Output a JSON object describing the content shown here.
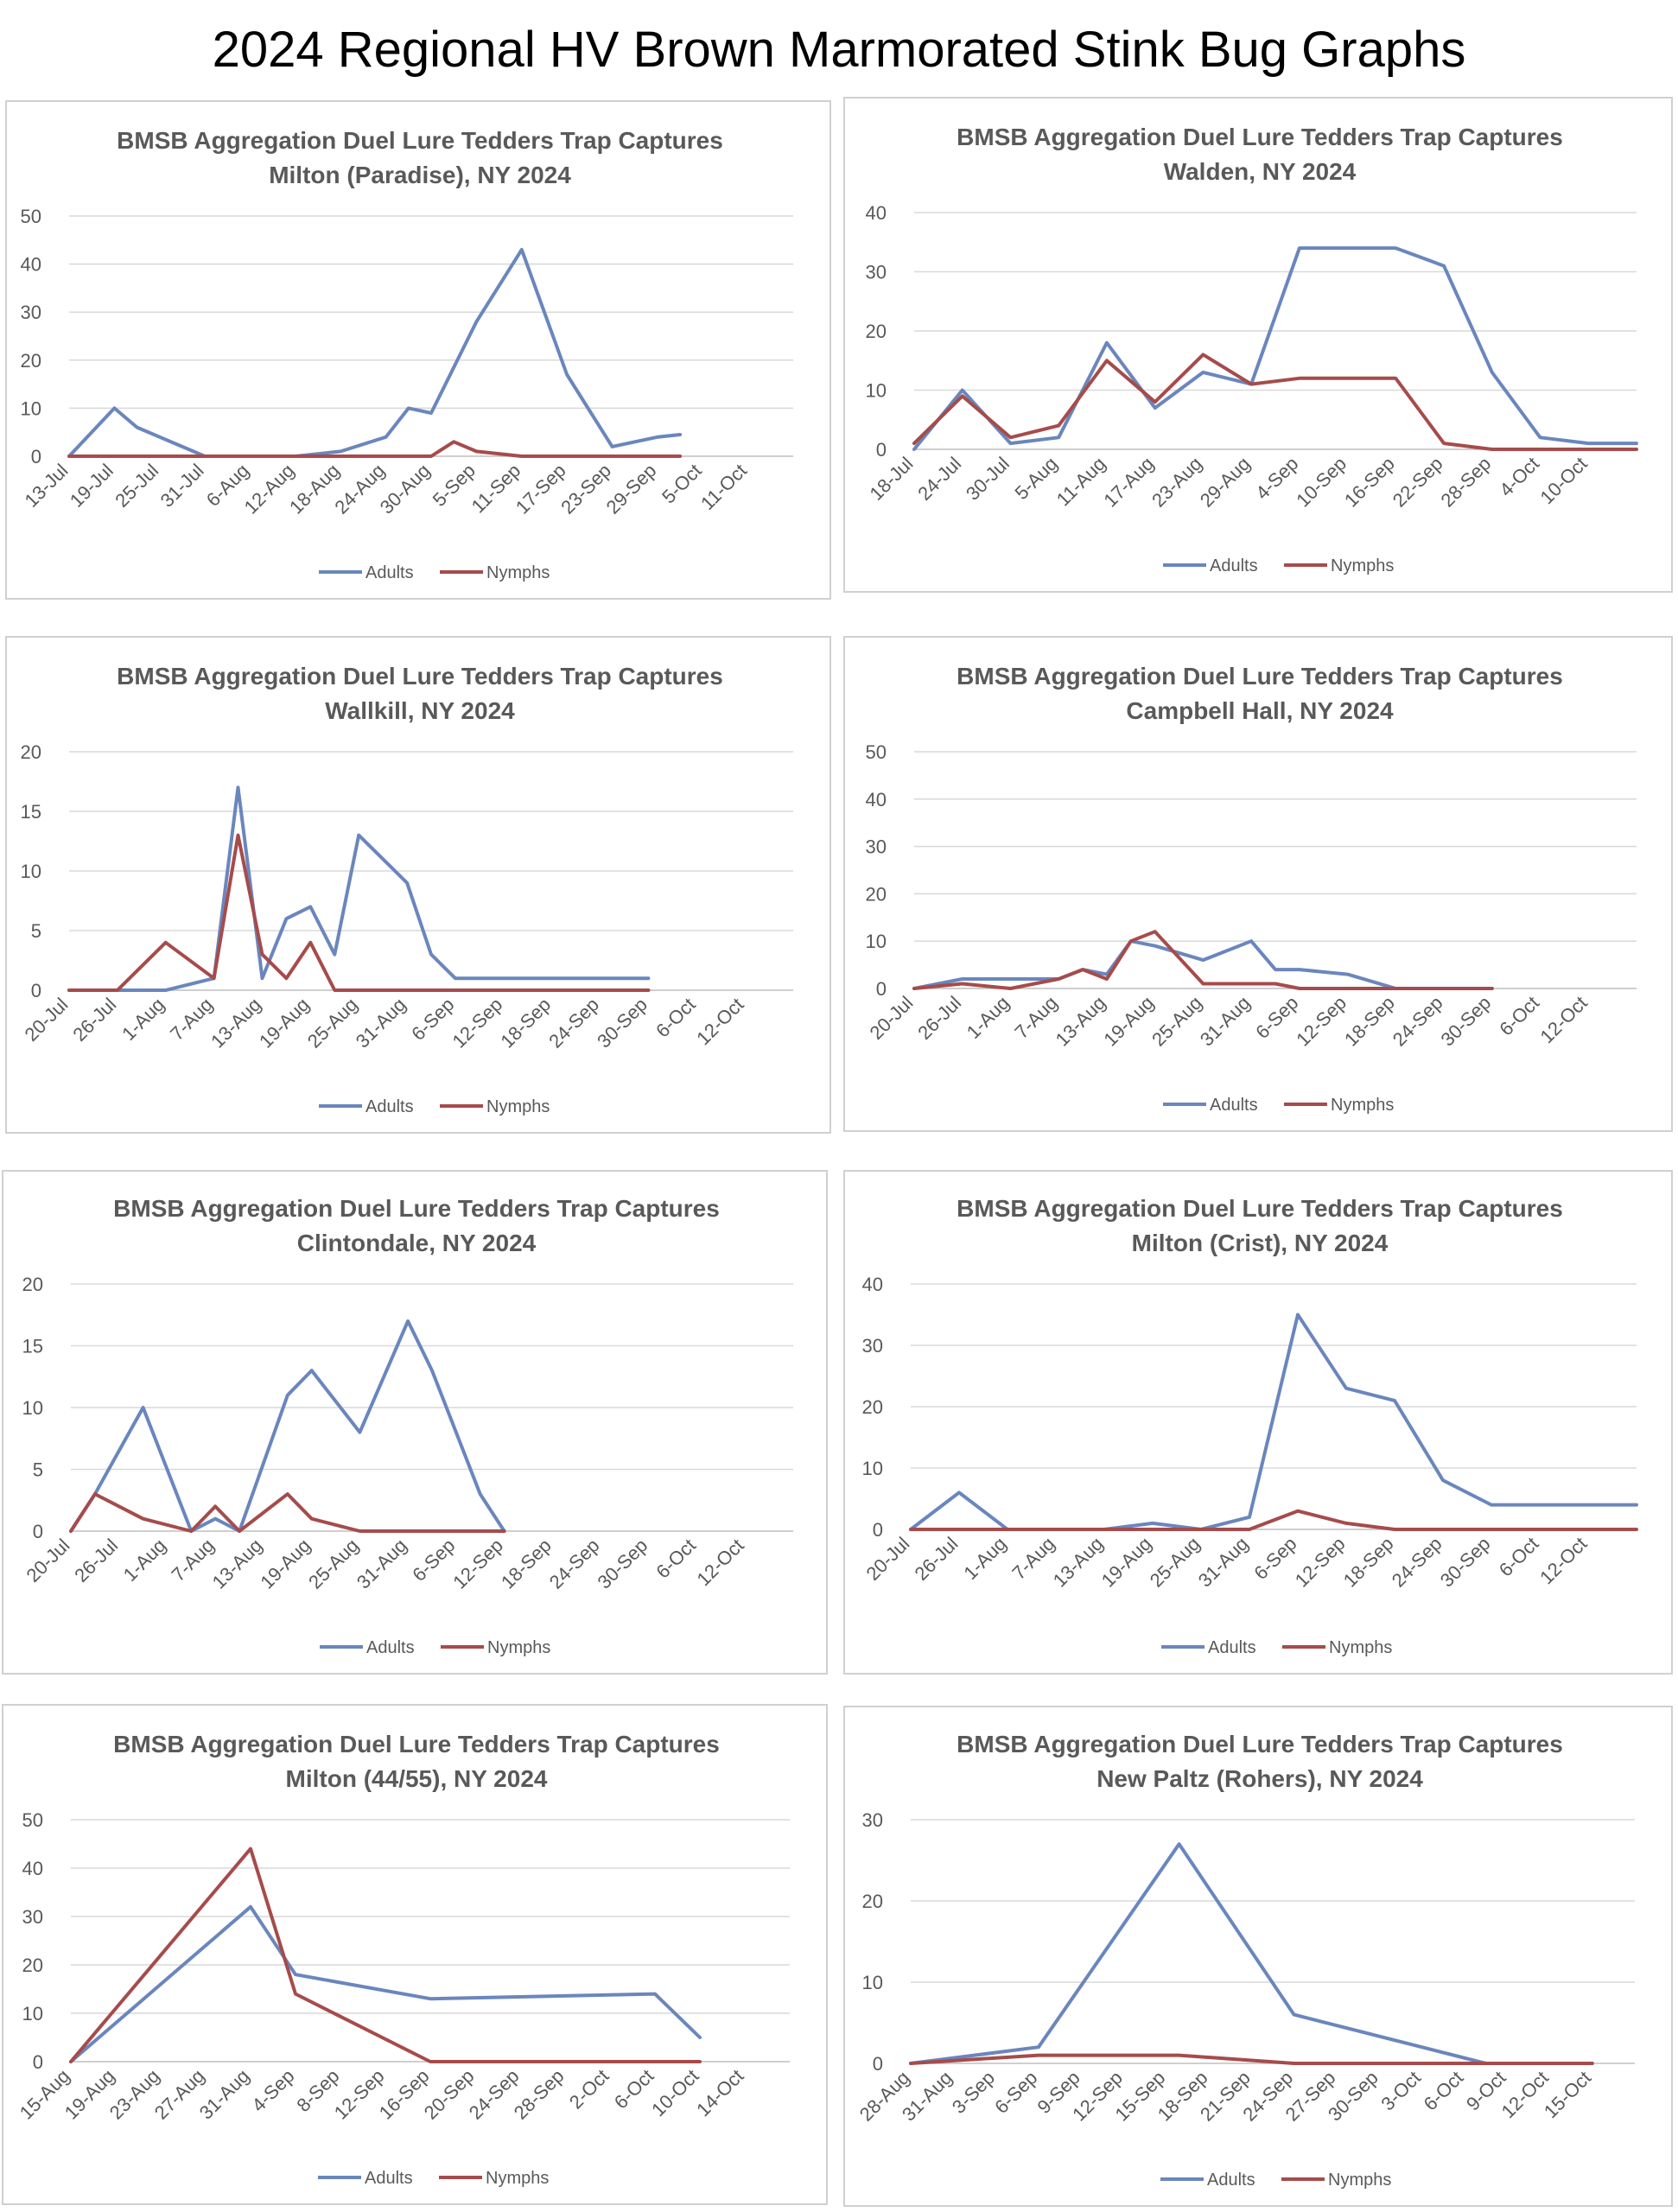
{
  "page": {
    "title": "2024 Regional HV Brown Marmorated Stink Bug Graphs"
  },
  "colors": {
    "adults": "#6a86bd",
    "nymphs": "#a64b4b"
  },
  "chart_data": [
    {
      "type": "line",
      "title_line1": "BMSB Aggregation Duel Lure Tedders Trap Captures",
      "title_line2": "Milton (Paradise), NY 2024",
      "ylim": [
        0,
        50
      ],
      "yticks": [
        0,
        10,
        20,
        30,
        40,
        50
      ],
      "categories": [
        "13-Jul",
        "19-Jul",
        "25-Jul",
        "31-Jul",
        "6-Aug",
        "12-Aug",
        "18-Aug",
        "24-Aug",
        "30-Aug",
        "5-Sep",
        "11-Sep",
        "17-Sep",
        "23-Sep",
        "29-Sep",
        "5-Oct",
        "11-Oct"
      ],
      "series": [
        {
          "name": "Adults",
          "x": [
            0,
            1,
            1.5,
            2.5,
            3,
            4,
            5,
            6,
            7,
            7.5,
            8,
            9,
            10,
            11,
            12,
            13,
            13.5
          ],
          "values": [
            0,
            10,
            6,
            2,
            0,
            0,
            0,
            1,
            4,
            10,
            9,
            28,
            43,
            17,
            2,
            4,
            4.5
          ]
        },
        {
          "name": "Nymphs",
          "x": [
            0,
            8,
            8.5,
            9,
            10,
            11,
            12,
            13,
            13.5
          ],
          "values": [
            0,
            0,
            3,
            1,
            0,
            0,
            0,
            0,
            0
          ]
        }
      ],
      "legend": "bottom"
    },
    {
      "type": "line",
      "title_line1": "BMSB Aggregation Duel Lure Tedders Trap Captures",
      "title_line2": "Walden, NY 2024",
      "ylim": [
        0,
        40
      ],
      "yticks": [
        0,
        10,
        20,
        30,
        40
      ],
      "categories": [
        "18-Jul",
        "24-Jul",
        "30-Jul",
        "5-Aug",
        "11-Aug",
        "17-Aug",
        "23-Aug",
        "29-Aug",
        "4-Sep",
        "10-Sep",
        "16-Sep",
        "22-Sep",
        "28-Sep",
        "4-Oct",
        "10-Oct"
      ],
      "series": [
        {
          "name": "Adults",
          "x": [
            0,
            1,
            2,
            3,
            4,
            5,
            6,
            7,
            8,
            9,
            10,
            11,
            12,
            13,
            14,
            15
          ],
          "values": [
            0,
            10,
            1,
            2,
            18,
            7,
            13,
            11,
            34,
            34,
            34,
            31,
            13,
            2,
            1,
            1
          ]
        },
        {
          "name": "Nymphs",
          "x": [
            0,
            1,
            2,
            3,
            4,
            5,
            6,
            7,
            8,
            9,
            10,
            11,
            12,
            13,
            14,
            15
          ],
          "values": [
            1,
            9,
            2,
            4,
            15,
            8,
            16,
            11,
            12,
            12,
            12,
            1,
            0,
            0,
            0,
            0
          ]
        }
      ],
      "legend": "bottom"
    },
    {
      "type": "line",
      "title_line1": "BMSB Aggregation Duel Lure Tedders Trap Captures",
      "title_line2": "Wallkill, NY 2024",
      "ylim": [
        0,
        20
      ],
      "yticks": [
        0,
        5,
        10,
        15,
        20
      ],
      "categories": [
        "20-Jul",
        "26-Jul",
        "1-Aug",
        "7-Aug",
        "13-Aug",
        "19-Aug",
        "25-Aug",
        "31-Aug",
        "6-Sep",
        "12-Sep",
        "18-Sep",
        "24-Sep",
        "30-Sep",
        "6-Oct",
        "12-Oct"
      ],
      "series": [
        {
          "name": "Adults",
          "x": [
            0,
            1,
            2,
            3,
            3.5,
            4,
            4.5,
            5,
            5.5,
            6,
            7,
            7.5,
            8,
            9,
            10,
            11,
            12
          ],
          "values": [
            0,
            0,
            0,
            1,
            17,
            1,
            6,
            7,
            3,
            13,
            9,
            3,
            1,
            1,
            1,
            1,
            1
          ]
        },
        {
          "name": "Nymphs",
          "x": [
            0,
            1,
            2,
            3,
            3.5,
            4,
            4.5,
            5,
            5.5,
            6,
            7,
            8,
            9,
            10,
            11,
            12
          ],
          "values": [
            0,
            0,
            4,
            1,
            13,
            3,
            1,
            4,
            0,
            0,
            0,
            0,
            0,
            0,
            0,
            0
          ]
        }
      ],
      "legend": "bottom"
    },
    {
      "type": "line",
      "title_line1": "BMSB Aggregation Duel Lure Tedders Trap Captures",
      "title_line2": "Campbell Hall, NY 2024",
      "ylim": [
        0,
        50
      ],
      "yticks": [
        0,
        10,
        20,
        30,
        40,
        50
      ],
      "categories": [
        "20-Jul",
        "26-Jul",
        "1-Aug",
        "7-Aug",
        "13-Aug",
        "19-Aug",
        "25-Aug",
        "31-Aug",
        "6-Sep",
        "12-Sep",
        "18-Sep",
        "24-Sep",
        "30-Sep",
        "6-Oct",
        "12-Oct"
      ],
      "series": [
        {
          "name": "Adults",
          "x": [
            0,
            1,
            2,
            3,
            3.5,
            4,
            4.5,
            5,
            6,
            7,
            7.5,
            8,
            9,
            10,
            11,
            12
          ],
          "values": [
            0,
            2,
            2,
            2,
            4,
            3,
            10,
            9,
            6,
            10,
            4,
            4,
            3,
            0,
            0,
            0
          ]
        },
        {
          "name": "Nymphs",
          "x": [
            0,
            1,
            2,
            3,
            3.5,
            4,
            4.5,
            5,
            6,
            7,
            7.5,
            8,
            9,
            10,
            11,
            12
          ],
          "values": [
            0,
            1,
            0,
            2,
            4,
            2,
            10,
            12,
            1,
            1,
            1,
            0,
            0,
            0,
            0,
            0
          ]
        }
      ],
      "legend": "bottom"
    },
    {
      "type": "line",
      "title_line1": "BMSB Aggregation Duel Lure Tedders Trap Captures",
      "title_line2": "Clintondale, NY 2024",
      "ylim": [
        0,
        20
      ],
      "yticks": [
        0,
        5,
        10,
        15,
        20
      ],
      "categories": [
        "20-Jul",
        "26-Jul",
        "1-Aug",
        "7-Aug",
        "13-Aug",
        "19-Aug",
        "25-Aug",
        "31-Aug",
        "6-Sep",
        "12-Sep",
        "18-Sep",
        "24-Sep",
        "30-Sep",
        "6-Oct",
        "12-Oct"
      ],
      "series": [
        {
          "name": "Adults",
          "x": [
            0,
            0.5,
            1.5,
            2.5,
            3,
            3.5,
            4.5,
            5,
            6,
            7,
            7.5,
            8.5,
            9
          ],
          "values": [
            0,
            3,
            10,
            0,
            1,
            0,
            11,
            13,
            8,
            17,
            13,
            3,
            0
          ]
        },
        {
          "name": "Nymphs",
          "x": [
            0,
            0.5,
            1.5,
            2.5,
            3,
            3.5,
            4.5,
            5,
            6,
            7,
            7.5,
            8.5,
            9
          ],
          "values": [
            0,
            3,
            1,
            0,
            2,
            0,
            3,
            1,
            0,
            0,
            0,
            0,
            0
          ]
        }
      ],
      "legend": "bottom"
    },
    {
      "type": "line",
      "title_line1": "BMSB Aggregation Duel Lure Tedders Trap Captures",
      "title_line2": "Milton (Crist), NY 2024",
      "ylim": [
        0,
        40
      ],
      "yticks": [
        0,
        10,
        20,
        30,
        40
      ],
      "categories": [
        "20-Jul",
        "26-Jul",
        "1-Aug",
        "7-Aug",
        "13-Aug",
        "19-Aug",
        "25-Aug",
        "31-Aug",
        "6-Sep",
        "12-Sep",
        "18-Sep",
        "24-Sep",
        "30-Sep",
        "6-Oct",
        "12-Oct"
      ],
      "series": [
        {
          "name": "Adults",
          "x": [
            0,
            1,
            2,
            3,
            4,
            5,
            6,
            7,
            8,
            9,
            10,
            11,
            12,
            13,
            14,
            15
          ],
          "values": [
            0,
            6,
            0,
            0,
            0,
            1,
            0,
            2,
            35,
            23,
            21,
            8,
            4,
            4,
            4,
            4
          ]
        },
        {
          "name": "Nymphs",
          "x": [
            0,
            1,
            2,
            3,
            4,
            5,
            6,
            7,
            8,
            9,
            10,
            11,
            12,
            13,
            14,
            15
          ],
          "values": [
            0,
            0,
            0,
            0,
            0,
            0,
            0,
            0,
            3,
            1,
            0,
            0,
            0,
            0,
            0,
            0
          ]
        }
      ],
      "legend": "bottom"
    },
    {
      "type": "line",
      "title_line1": "BMSB Aggregation Duel Lure Tedders Trap Captures",
      "title_line2": "Milton (44/55), NY 2024",
      "ylim": [
        0,
        50
      ],
      "yticks": [
        0,
        10,
        20,
        30,
        40,
        50
      ],
      "categories": [
        "15-Aug",
        "19-Aug",
        "23-Aug",
        "27-Aug",
        "31-Aug",
        "4-Sep",
        "8-Sep",
        "12-Sep",
        "16-Sep",
        "20-Sep",
        "24-Sep",
        "28-Sep",
        "2-Oct",
        "6-Oct",
        "10-Oct",
        "14-Oct"
      ],
      "series": [
        {
          "name": "Adults",
          "x": [
            0,
            4,
            5,
            8,
            13,
            14
          ],
          "values": [
            0,
            32,
            18,
            13,
            14,
            5
          ]
        },
        {
          "name": "Nymphs",
          "x": [
            0,
            4,
            5,
            8,
            13,
            14
          ],
          "values": [
            0,
            44,
            14,
            0,
            0,
            0
          ]
        }
      ],
      "legend": "bottom"
    },
    {
      "type": "line",
      "title_line1": "BMSB Aggregation Duel Lure Tedders Trap Captures",
      "title_line2": "New Paltz (Rohers), NY 2024",
      "ylim": [
        0,
        30
      ],
      "yticks": [
        0,
        10,
        20,
        30
      ],
      "categories": [
        "28-Aug",
        "31-Aug",
        "3-Sep",
        "6-Sep",
        "9-Sep",
        "12-Sep",
        "15-Sep",
        "18-Sep",
        "21-Sep",
        "24-Sep",
        "27-Sep",
        "30-Sep",
        "3-Oct",
        "6-Oct",
        "9-Oct",
        "12-Oct",
        "15-Oct"
      ],
      "series": [
        {
          "name": "Adults",
          "x": [
            0,
            3,
            6.3,
            9,
            13.5,
            14,
            16
          ],
          "values": [
            0,
            2,
            27,
            6,
            0,
            0,
            0
          ]
        },
        {
          "name": "Nymphs",
          "x": [
            0,
            3,
            6.3,
            9,
            13.5,
            14,
            16
          ],
          "values": [
            0,
            1,
            1,
            0,
            0,
            0,
            0
          ]
        }
      ],
      "legend": "bottom"
    }
  ]
}
